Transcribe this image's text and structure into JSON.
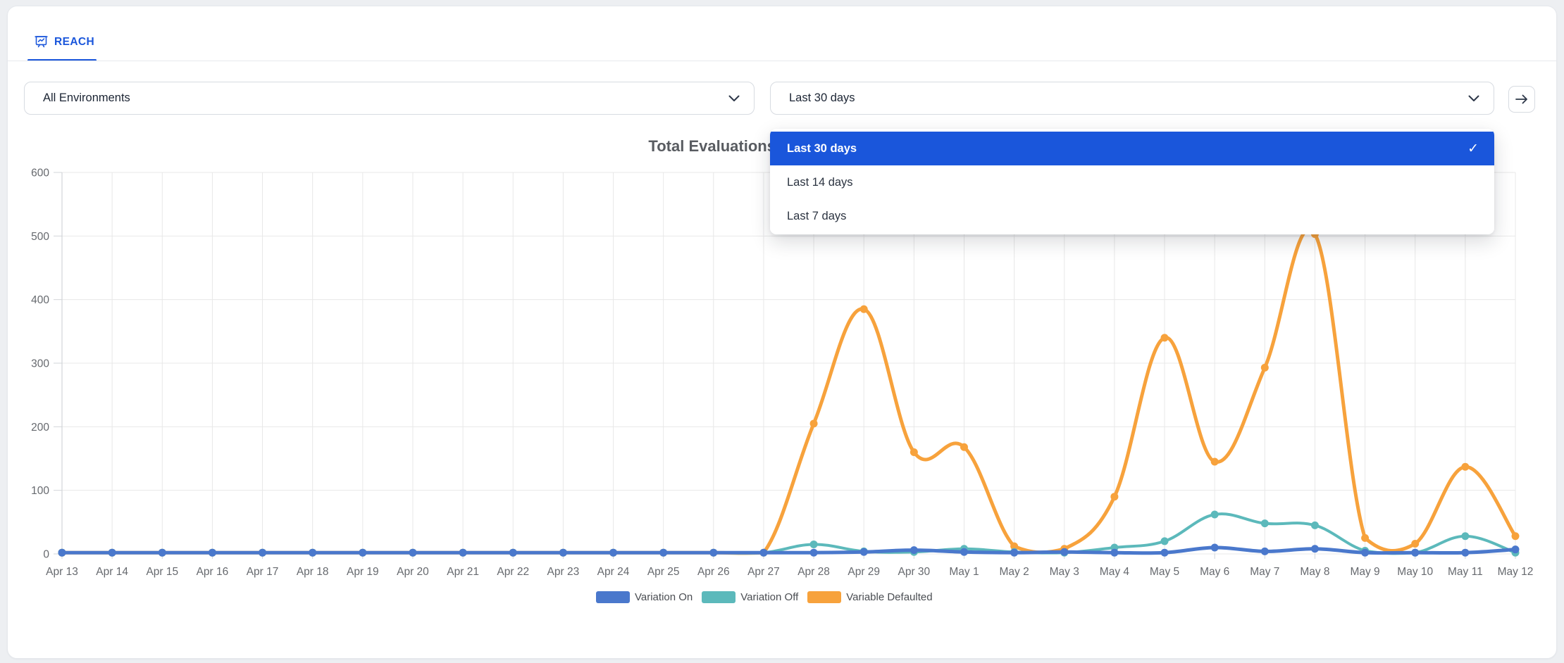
{
  "tabs": {
    "reach": {
      "label": "REACH"
    }
  },
  "filters": {
    "environment": {
      "value": "All Environments"
    },
    "date_range": {
      "value": "Last 30 days"
    }
  },
  "date_range_menu": {
    "options": [
      {
        "label": "Last 30 days",
        "selected": true
      },
      {
        "label": "Last 14 days",
        "selected": false
      },
      {
        "label": "Last 7 days",
        "selected": false
      }
    ]
  },
  "icons": {
    "check": "✓"
  },
  "colors": {
    "accent_blue": "#1a56db",
    "series_on": "#4a78cc",
    "series_off": "#5cb9bb",
    "series_defaulted": "#f7a23c",
    "grid": "#e8e8e8",
    "axis": "#d2d5d9",
    "axis_label": "#66696e"
  },
  "chart_data": {
    "type": "line",
    "title": "Total Evaluations Per Variation",
    "x": [
      "Apr 13",
      "Apr 14",
      "Apr 15",
      "Apr 16",
      "Apr 17",
      "Apr 18",
      "Apr 19",
      "Apr 20",
      "Apr 21",
      "Apr 22",
      "Apr 23",
      "Apr 24",
      "Apr 25",
      "Apr 26",
      "Apr 27",
      "Apr 28",
      "Apr 29",
      "Apr 30",
      "May 1",
      "May 2",
      "May 3",
      "May 4",
      "May 5",
      "May 6",
      "May 7",
      "May 8",
      "May 9",
      "May 10",
      "May 11",
      "May 12"
    ],
    "series": [
      {
        "name": "Variation On",
        "color": "#4a78cc",
        "values": [
          2,
          2,
          2,
          2,
          2,
          2,
          2,
          2,
          2,
          2,
          2,
          2,
          2,
          2,
          2,
          2,
          3,
          6,
          3,
          2,
          3,
          2,
          2,
          10,
          4,
          8,
          2,
          2,
          2,
          7
        ]
      },
      {
        "name": "Variation Off",
        "color": "#5cb9bb",
        "values": [
          2,
          2,
          2,
          2,
          2,
          2,
          2,
          2,
          2,
          2,
          2,
          2,
          2,
          2,
          2,
          15,
          4,
          3,
          8,
          3,
          2,
          10,
          20,
          62,
          48,
          45,
          5,
          2,
          28,
          2
        ]
      },
      {
        "name": "Variable Defaulted",
        "color": "#f7a23c",
        "values": [
          2,
          2,
          2,
          2,
          2,
          2,
          2,
          2,
          2,
          2,
          2,
          2,
          2,
          2,
          2,
          205,
          385,
          160,
          168,
          12,
          8,
          90,
          340,
          145,
          293,
          503,
          25,
          16,
          137,
          28
        ]
      }
    ],
    "ylim": [
      0,
      600
    ],
    "yticks": [
      0,
      100,
      200,
      300,
      400,
      500,
      600
    ],
    "grid": true,
    "legend_position": "bottom"
  }
}
